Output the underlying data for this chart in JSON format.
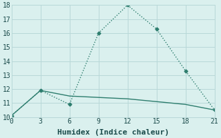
{
  "series": [
    {
      "x": [
        0,
        3,
        6,
        9,
        12,
        15,
        18,
        21
      ],
      "y": [
        10.1,
        11.9,
        10.9,
        16.0,
        18.0,
        16.3,
        13.3,
        10.5
      ],
      "color": "#2d7d6e",
      "linewidth": 1.0,
      "linestyle": ":",
      "marker": "D",
      "markersize": 2.5
    },
    {
      "x": [
        0,
        3,
        6,
        9,
        12,
        15,
        18,
        21
      ],
      "y": [
        10.1,
        11.9,
        11.5,
        11.4,
        11.3,
        11.1,
        10.9,
        10.5
      ],
      "color": "#2d7d6e",
      "linewidth": 1.0,
      "linestyle": "-",
      "marker": null,
      "markersize": 0
    }
  ],
  "xlabel": "Humidex (Indice chaleur)",
  "xlim": [
    0,
    21
  ],
  "ylim": [
    10,
    18
  ],
  "xticks": [
    0,
    3,
    6,
    9,
    12,
    15,
    18,
    21
  ],
  "yticks": [
    10,
    11,
    12,
    13,
    14,
    15,
    16,
    17,
    18
  ],
  "grid_color": "#b8d8d8",
  "bg_color": "#daf0ee",
  "xlabel_fontsize": 8,
  "tick_fontsize": 7
}
